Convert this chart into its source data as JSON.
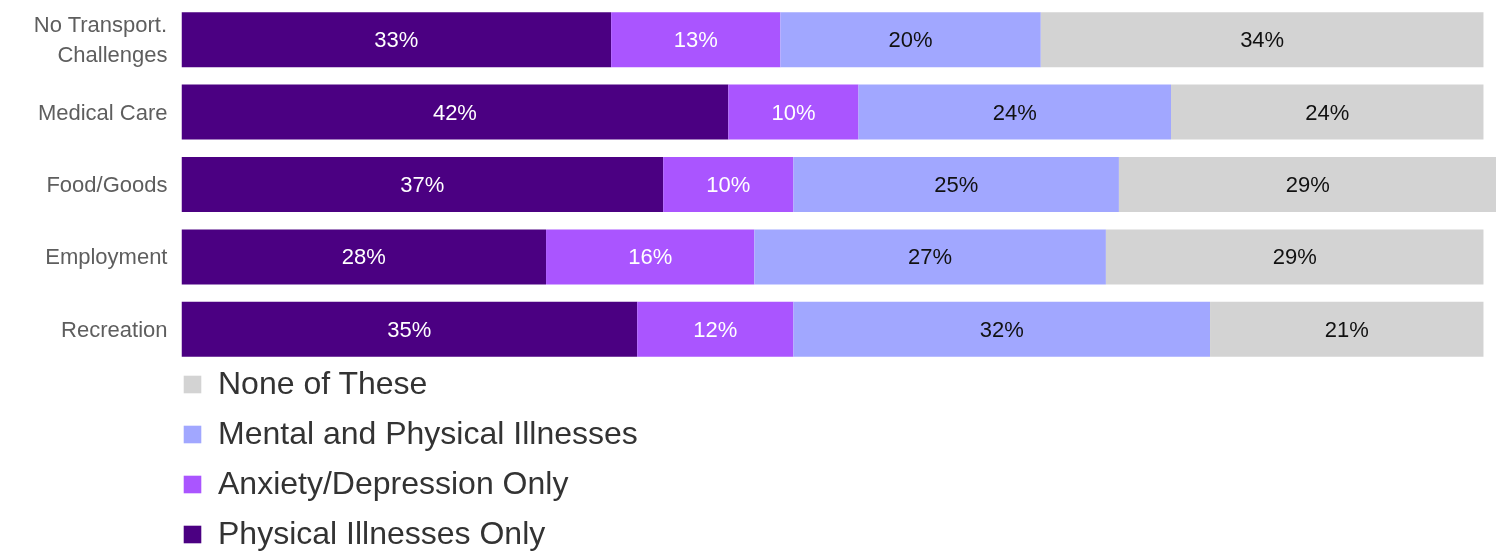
{
  "chart_data": {
    "type": "bar",
    "orientation": "horizontal",
    "stacked": true,
    "categories": [
      "No Transport.\nChallenges",
      "Medical Care",
      "Food/Goods",
      "Employment",
      "Recreation"
    ],
    "xlim": [
      0,
      101
    ],
    "tick_labels": "y",
    "legend": "bottom left",
    "series": [
      {
        "name": "Physical Illnesses Only",
        "color": "#4b0082",
        "values": [
          33,
          42,
          37,
          28,
          35
        ],
        "value_labels": [
          "33%",
          "42%",
          "37%",
          "28%",
          "35%"
        ]
      },
      {
        "name": "Anxiety/Depression Only",
        "color": "#aa55ff",
        "values": [
          13,
          10,
          10,
          16,
          12
        ],
        "value_labels": [
          "13%",
          "10%",
          "10%",
          "16%",
          "12%"
        ]
      },
      {
        "name": "Mental and Physical Illnesses",
        "color": "#a1a7ff",
        "values": [
          20,
          24,
          25,
          27,
          32
        ],
        "value_labels": [
          "20%",
          "24%",
          "25%",
          "27%",
          "32%"
        ]
      },
      {
        "name": "None of These",
        "color": "#d3d3d3",
        "values": [
          34,
          24,
          29,
          29,
          21
        ],
        "value_labels": [
          "34%",
          "24%",
          "29%",
          "29%",
          "21%"
        ]
      }
    ]
  }
}
